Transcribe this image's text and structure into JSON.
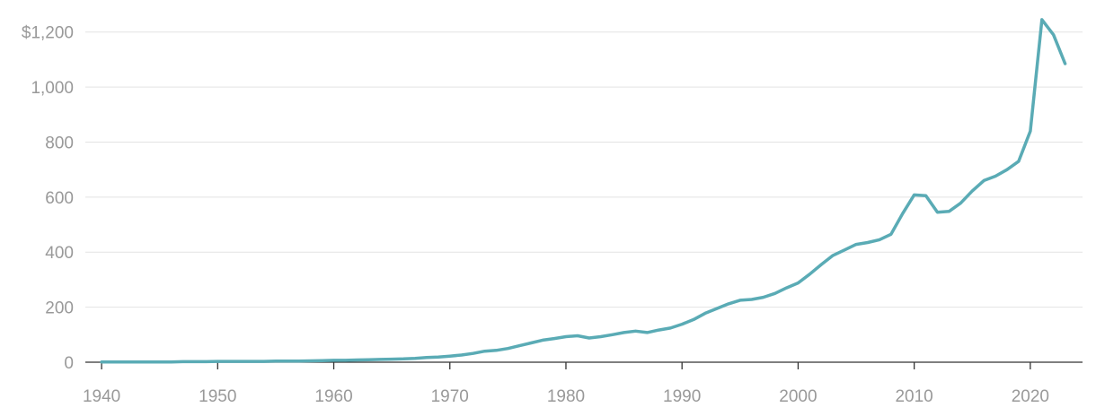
{
  "chart_data": {
    "type": "line",
    "x": [
      1940,
      1941,
      1942,
      1943,
      1944,
      1945,
      1946,
      1947,
      1948,
      1949,
      1950,
      1951,
      1952,
      1953,
      1954,
      1955,
      1956,
      1957,
      1958,
      1959,
      1960,
      1961,
      1962,
      1963,
      1964,
      1965,
      1966,
      1967,
      1968,
      1969,
      1970,
      1971,
      1972,
      1973,
      1974,
      1975,
      1976,
      1977,
      1978,
      1979,
      1980,
      1981,
      1982,
      1983,
      1984,
      1985,
      1986,
      1987,
      1988,
      1989,
      1990,
      1991,
      1992,
      1993,
      1994,
      1995,
      1996,
      1997,
      1998,
      1999,
      2000,
      2001,
      2002,
      2003,
      2004,
      2005,
      2006,
      2007,
      2008,
      2009,
      2010,
      2011,
      2012,
      2013,
      2014,
      2015,
      2016,
      2017,
      2018,
      2019,
      2020,
      2021,
      2022,
      2023
    ],
    "series": [
      {
        "color": "#5aabb5",
        "values": [
          1,
          1,
          1,
          1,
          1,
          1,
          1,
          2,
          2,
          2,
          3,
          3,
          3,
          3,
          3,
          4,
          4,
          4,
          5,
          6,
          7,
          7,
          8,
          9,
          10,
          11,
          12,
          14,
          17,
          19,
          22,
          26,
          32,
          40,
          43,
          50,
          60,
          70,
          80,
          86,
          93,
          96,
          88,
          93,
          100,
          108,
          113,
          108,
          117,
          124,
          138,
          155,
          178,
          195,
          212,
          225,
          228,
          236,
          250,
          270,
          288,
          320,
          355,
          388,
          408,
          428,
          435,
          445,
          465,
          540,
          608,
          605,
          545,
          548,
          578,
          622,
          660,
          676,
          700,
          730,
          840,
          1245,
          1190,
          1085
        ]
      }
    ],
    "xlim": [
      1938.6,
      2024.5
    ],
    "xticks": [
      1940,
      1950,
      1960,
      1970,
      1980,
      1990,
      2000,
      2010,
      2020
    ],
    "ylim": [
      0,
      1300
    ],
    "yticks": [
      0,
      200,
      400,
      600,
      800,
      {
        "value": 1000,
        "label": "1,000"
      },
      {
        "value": 1200,
        "label": "$1,200"
      }
    ],
    "grid": true
  }
}
